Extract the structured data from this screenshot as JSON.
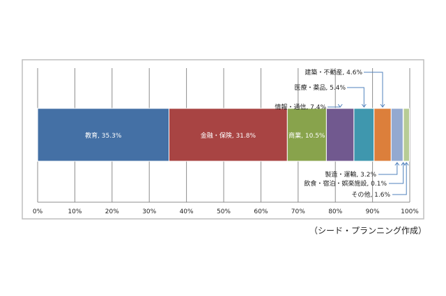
{
  "chart_data": {
    "type": "bar",
    "orientation": "horizontal-stacked-100",
    "title": "",
    "xlabel": "",
    "ylabel": "",
    "xlim": [
      0,
      100
    ],
    "xticks": [
      "0%",
      "10%",
      "20%",
      "30%",
      "40%",
      "50%",
      "60%",
      "70%",
      "80%",
      "90%",
      "100%"
    ],
    "grid": true,
    "legend": "none",
    "series": [
      {
        "name": "教育",
        "value": 35.3,
        "label": "教育, 35.3%",
        "color": "#4470a5"
      },
      {
        "name": "金融・保険",
        "value": 31.8,
        "label": "金融・保険, 31.8%",
        "color": "#a84443"
      },
      {
        "name": "商業",
        "value": 10.5,
        "label": "商業, 10.5%",
        "color": "#88a34c"
      },
      {
        "name": "情報・通信",
        "value": 7.4,
        "label": "情報・通信, 7.4%",
        "color": "#71598f"
      },
      {
        "name": "医療・薬品",
        "value": 5.4,
        "label": "医療・薬品, 5.4%",
        "color": "#3f97ae"
      },
      {
        "name": "建築・不動産",
        "value": 4.6,
        "label": "建築・不動産, 4.6%",
        "color": "#dc7f3b"
      },
      {
        "name": "製造・運輸",
        "value": 3.2,
        "label": "製造・運輸, 3.2%",
        "color": "#93a9d0"
      },
      {
        "name": "飲食・宿泊・娯楽施設",
        "value": 0.1,
        "label": "飲食・宿泊・娯楽施設, 0.1%",
        "color": "#d39796"
      },
      {
        "name": "その他",
        "value": 1.6,
        "label": "その他, 1.6%",
        "color": "#b7cc95"
      }
    ]
  },
  "source_note": "（シード・プランニング作成）"
}
